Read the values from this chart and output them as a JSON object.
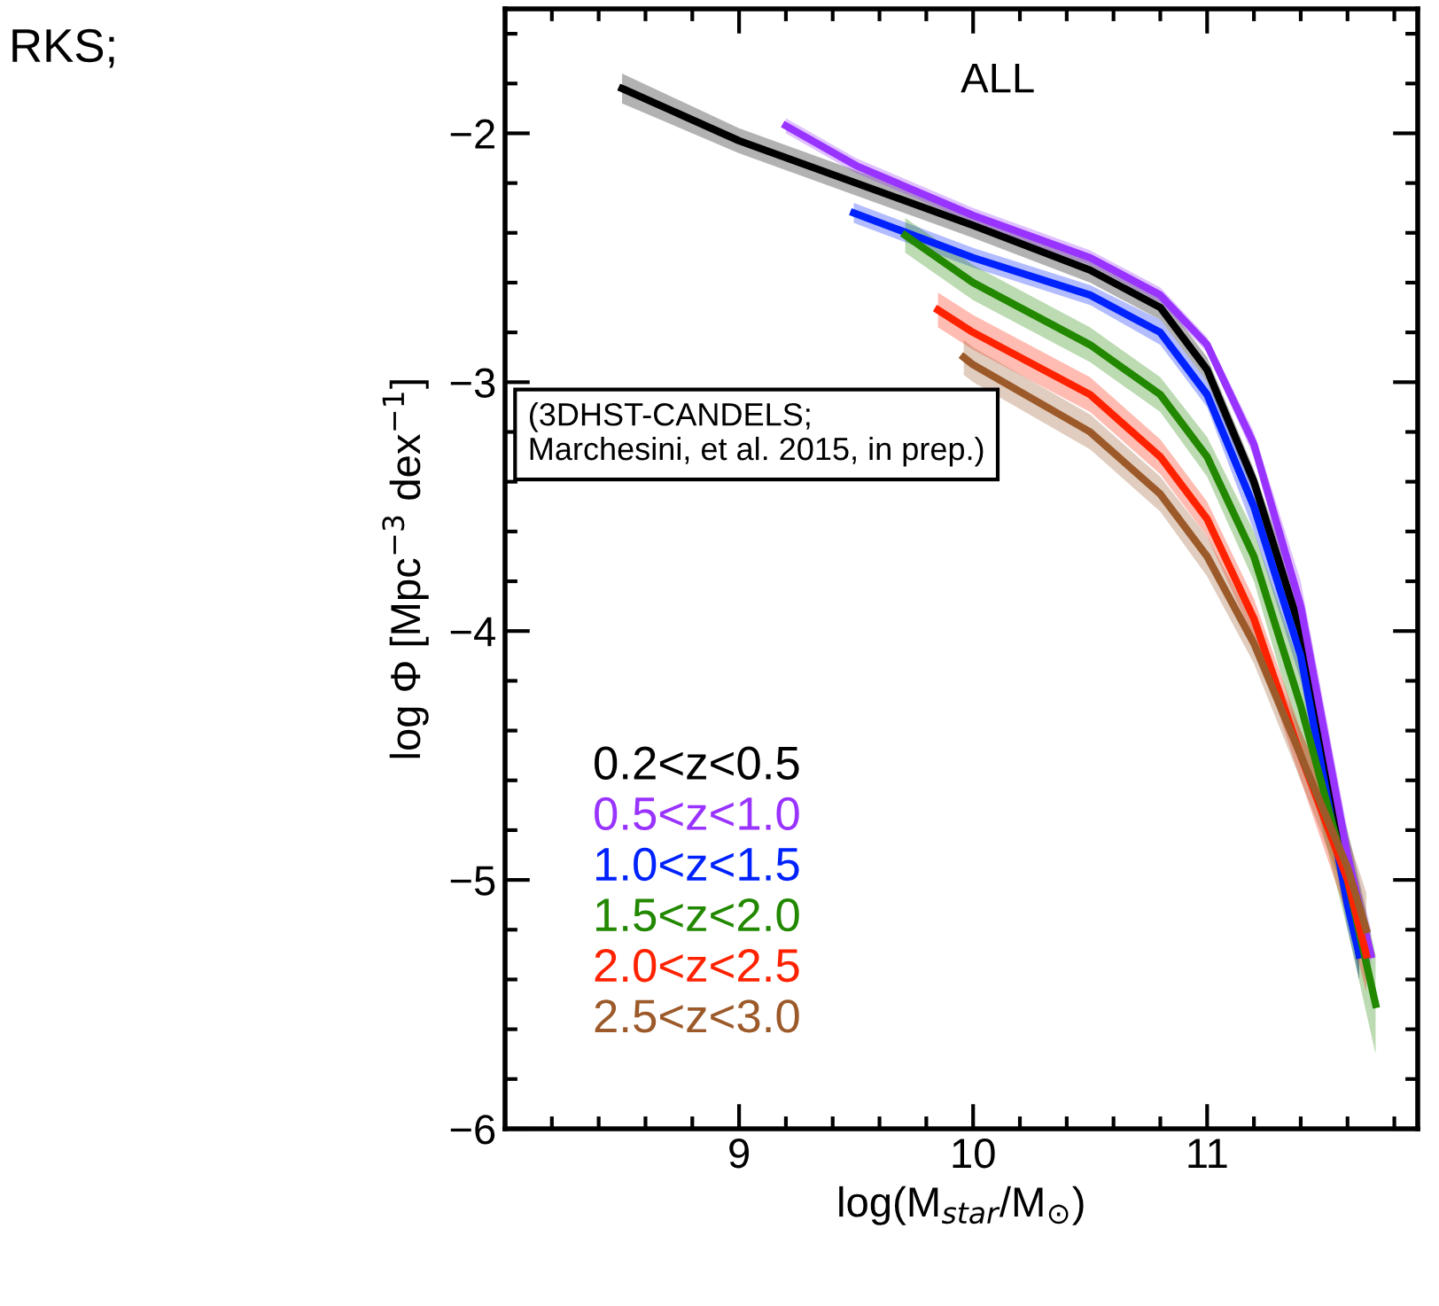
{
  "chart_data": {
    "type": "line",
    "xlabel": "log(M$_{star}$/M$_{⊙}$)",
    "ylabel": "log Φ [Mpc$^{−3}$ dex$^{−1}$]",
    "xlim": [
      8.0,
      11.9
    ],
    "ylim": [
      -6,
      -1.5
    ],
    "xticks": [
      9,
      10,
      11
    ],
    "yticks": [
      {
        "value": -6,
        "label": "−6"
      },
      {
        "value": -5,
        "label": "−5"
      },
      {
        "value": -4,
        "label": "−4"
      },
      {
        "value": -3,
        "label": "−3"
      },
      {
        "value": -2,
        "label": "−2"
      }
    ],
    "grid": false,
    "legend": "bottom left",
    "line_style": "solid",
    "marker": "none",
    "annotations": [
      "ALL",
      "(3DHST-CANDELS;\nMarchesini, et al. 2015, in prep.)",
      "RKS;"
    ],
    "series": [
      {
        "name": "0.2<z<0.5",
        "color": "#000000",
        "x": [
          8.5,
          9.0,
          9.5,
          10.0,
          10.5,
          10.8,
          11.0,
          11.2,
          11.4,
          11.5,
          11.6,
          11.65
        ],
        "values": [
          -1.82,
          -2.03,
          -2.2,
          -2.37,
          -2.55,
          -2.7,
          -2.95,
          -3.4,
          -4.0,
          -4.5,
          -5.0,
          -5.3
        ],
        "lower": [
          -1.88,
          -2.08,
          -2.25,
          -2.42,
          -2.6,
          -2.75,
          -3.0,
          -3.45,
          -4.1,
          -4.6,
          -5.1,
          -5.4
        ],
        "upper": [
          -1.76,
          -1.98,
          -2.15,
          -2.32,
          -2.5,
          -2.65,
          -2.9,
          -3.35,
          -3.9,
          -4.4,
          -4.9,
          -5.2
        ]
      },
      {
        "name": "0.5<z<1.0",
        "color": "#9933ff",
        "x": [
          9.2,
          9.5,
          10.0,
          10.5,
          10.8,
          11.0,
          11.2,
          11.4,
          11.5,
          11.6,
          11.7
        ],
        "values": [
          -1.97,
          -2.13,
          -2.33,
          -2.5,
          -2.65,
          -2.85,
          -3.25,
          -3.9,
          -4.4,
          -4.9,
          -5.3
        ],
        "lower": [
          -2.0,
          -2.16,
          -2.36,
          -2.53,
          -2.68,
          -2.88,
          -3.3,
          -4.0,
          -4.5,
          -5.0,
          -5.4
        ],
        "upper": [
          -1.94,
          -2.1,
          -2.3,
          -2.47,
          -2.62,
          -2.82,
          -3.2,
          -3.8,
          -4.3,
          -4.8,
          -5.2
        ]
      },
      {
        "name": "1.0<z<1.5",
        "color": "#0022ff",
        "x": [
          9.49,
          10.0,
          10.5,
          10.8,
          11.0,
          11.2,
          11.4,
          11.5,
          11.6,
          11.65
        ],
        "values": [
          -2.32,
          -2.5,
          -2.65,
          -2.8,
          -3.05,
          -3.5,
          -4.1,
          -4.6,
          -5.1,
          -5.3
        ],
        "lower": [
          -2.36,
          -2.54,
          -2.69,
          -2.85,
          -3.1,
          -3.6,
          -4.2,
          -4.7,
          -5.2,
          -5.4
        ],
        "upper": [
          -2.28,
          -2.46,
          -2.61,
          -2.75,
          -3.0,
          -3.4,
          -4.0,
          -4.5,
          -5.0,
          -5.2
        ]
      },
      {
        "name": "1.5<z<2.0",
        "color": "#228800",
        "x": [
          9.71,
          10.0,
          10.5,
          10.8,
          11.0,
          11.2,
          11.4,
          11.6,
          11.72
        ],
        "values": [
          -2.41,
          -2.6,
          -2.85,
          -3.05,
          -3.3,
          -3.7,
          -4.3,
          -5.0,
          -5.5
        ],
        "lower": [
          -2.48,
          -2.67,
          -2.92,
          -3.12,
          -3.38,
          -3.8,
          -4.45,
          -5.2,
          -5.7
        ],
        "upper": [
          -2.34,
          -2.53,
          -2.78,
          -2.98,
          -3.22,
          -3.6,
          -4.15,
          -4.8,
          -5.3
        ]
      },
      {
        "name": "2.0<z<2.5",
        "color": "#ff2200",
        "x": [
          9.85,
          10.0,
          10.5,
          10.8,
          11.0,
          11.2,
          11.4,
          11.6,
          11.68
        ],
        "values": [
          -2.71,
          -2.8,
          -3.05,
          -3.3,
          -3.55,
          -3.95,
          -4.5,
          -5.0,
          -5.3
        ],
        "lower": [
          -2.78,
          -2.87,
          -3.12,
          -3.37,
          -3.62,
          -4.03,
          -4.6,
          -5.15,
          -5.45
        ],
        "upper": [
          -2.64,
          -2.73,
          -2.98,
          -3.23,
          -3.48,
          -3.87,
          -4.4,
          -4.85,
          -5.15
        ]
      },
      {
        "name": "2.5<z<3.0",
        "color": "#9c5a2a",
        "x": [
          9.96,
          10.0,
          10.5,
          10.8,
          11.0,
          11.2,
          11.4,
          11.6,
          11.68
        ],
        "values": [
          -2.9,
          -2.93,
          -3.2,
          -3.45,
          -3.7,
          -4.05,
          -4.5,
          -4.95,
          -5.2
        ],
        "lower": [
          -2.97,
          -3.0,
          -3.27,
          -3.52,
          -3.78,
          -4.13,
          -4.6,
          -5.08,
          -5.35
        ],
        "upper": [
          -2.83,
          -2.86,
          -3.13,
          -3.38,
          -3.62,
          -3.97,
          -4.4,
          -4.82,
          -5.05
        ]
      }
    ]
  }
}
